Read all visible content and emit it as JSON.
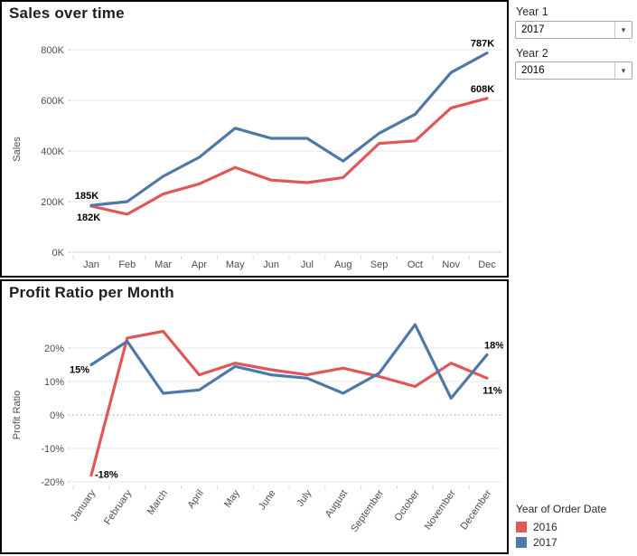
{
  "filters": {
    "year1": {
      "label": "Year 1",
      "value": "2017"
    },
    "year2": {
      "label": "Year 2",
      "value": "2016"
    }
  },
  "legend": {
    "title": "Year of Order Date",
    "items": [
      {
        "label": "2016",
        "color": "#e15759"
      },
      {
        "label": "2017",
        "color": "#4e79a7"
      }
    ]
  },
  "chart_data": [
    {
      "type": "line",
      "title": "Sales over time",
      "xlabel": "",
      "ylabel": "Sales",
      "unit": "K",
      "ylim": [
        0,
        800
      ],
      "yticks": [
        "0K",
        "200K",
        "400K",
        "600K",
        "800K"
      ],
      "grid": true,
      "categories": [
        "Jan",
        "Feb",
        "Mar",
        "Apr",
        "May",
        "Jun",
        "Jul",
        "Aug",
        "Sep",
        "Oct",
        "Nov",
        "Dec"
      ],
      "series": [
        {
          "name": "2016",
          "color": "#e15759",
          "values": [
            182,
            150,
            230,
            270,
            335,
            285,
            275,
            295,
            430,
            440,
            570,
            608
          ]
        },
        {
          "name": "2017",
          "color": "#4e79a7",
          "values": [
            185,
            200,
            300,
            375,
            490,
            450,
            450,
            360,
            470,
            545,
            710,
            787
          ]
        }
      ],
      "annotations": [
        {
          "series": "2017",
          "index": 0,
          "text": "185K",
          "placement": "above"
        },
        {
          "series": "2016",
          "index": 0,
          "text": "182K",
          "placement": "below"
        },
        {
          "series": "2017",
          "index": 11,
          "text": "787K",
          "placement": "above"
        },
        {
          "series": "2016",
          "index": 11,
          "text": "608K",
          "placement": "above"
        }
      ]
    },
    {
      "type": "line",
      "title": "Profit Ratio per Month",
      "xlabel": "",
      "ylabel": "Profit Ratio",
      "unit": "%",
      "ylim": [
        -20,
        28
      ],
      "yticks": [
        "-20%",
        "-10%",
        "0%",
        "10%",
        "20%"
      ],
      "grid": true,
      "x_tick_rotation": -55,
      "categories": [
        "January",
        "February",
        "March",
        "April",
        "May",
        "June",
        "July",
        "August",
        "September",
        "October",
        "November",
        "December"
      ],
      "series": [
        {
          "name": "2016",
          "color": "#e15759",
          "values": [
            -18,
            23,
            25,
            12,
            15.5,
            13.5,
            12,
            14,
            11.5,
            8.5,
            15.5,
            11
          ]
        },
        {
          "name": "2017",
          "color": "#4e79a7",
          "values": [
            15,
            22,
            6.5,
            7.5,
            14.5,
            12,
            11,
            6.5,
            12.5,
            27,
            5,
            18
          ]
        }
      ],
      "annotations": [
        {
          "series": "2017",
          "index": 0,
          "text": "15%",
          "placement": "left"
        },
        {
          "series": "2016",
          "index": 0,
          "text": "-18%",
          "placement": "right"
        },
        {
          "series": "2017",
          "index": 11,
          "text": "18%",
          "placement": "above-right"
        },
        {
          "series": "2016",
          "index": 11,
          "text": "11%",
          "placement": "below-right"
        }
      ]
    }
  ]
}
